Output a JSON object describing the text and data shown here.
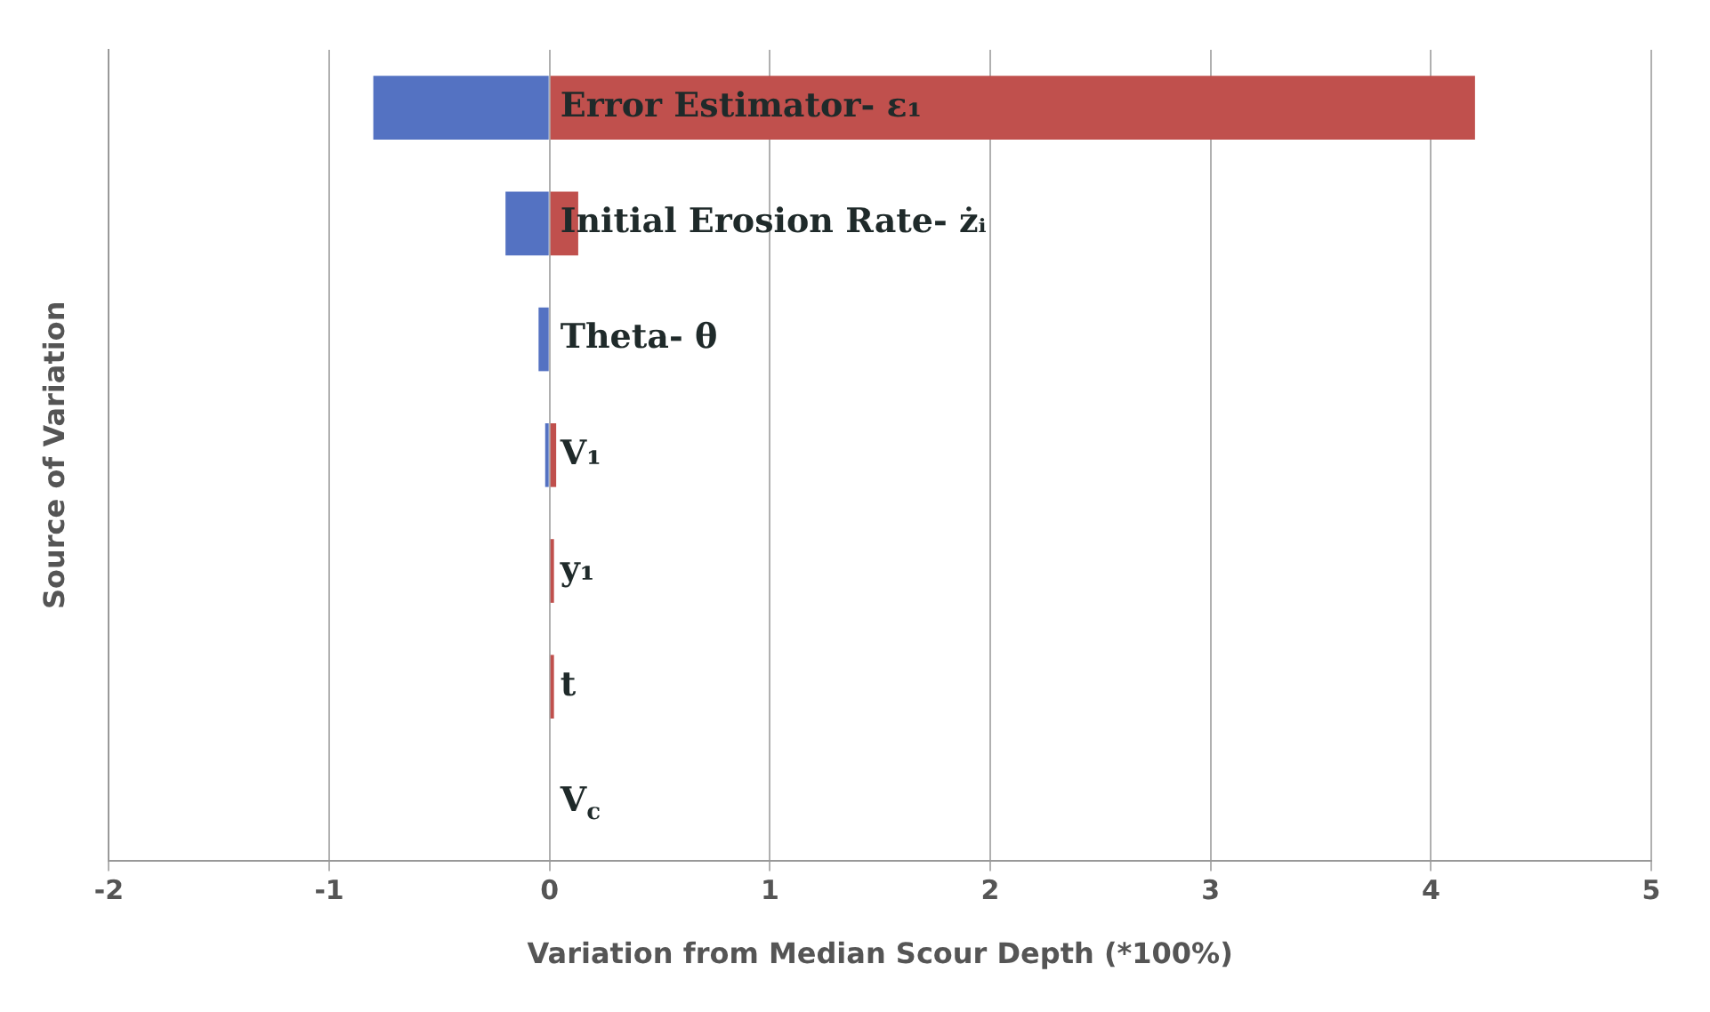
{
  "chart_data": {
    "type": "bar",
    "orientation": "horizontal",
    "stacked": true,
    "xlabel": "Variation from Median Scour Depth (*100%)",
    "ylabel": "Source of Variation",
    "categories": [
      "Error Estimator- ε₁",
      "Initial Erosion Rate- żᵢ",
      "Theta- θ",
      "V₁",
      "y₁",
      "t",
      "V$_{c}$"
    ],
    "series": [
      {
        "color": "#5472c2",
        "values": [
          -0.8,
          -0.2,
          -0.05,
          -0.02,
          0,
          0,
          0
        ]
      },
      {
        "color": "#c0504d",
        "values": [
          4.2,
          0.13,
          0,
          0.03,
          0.02,
          0.02,
          0
        ]
      }
    ],
    "xlim": [
      -2,
      5
    ],
    "xticks": [
      -2,
      -1,
      0,
      1,
      2,
      3,
      4,
      5
    ],
    "grid": "x",
    "tick_labels": "x"
  }
}
